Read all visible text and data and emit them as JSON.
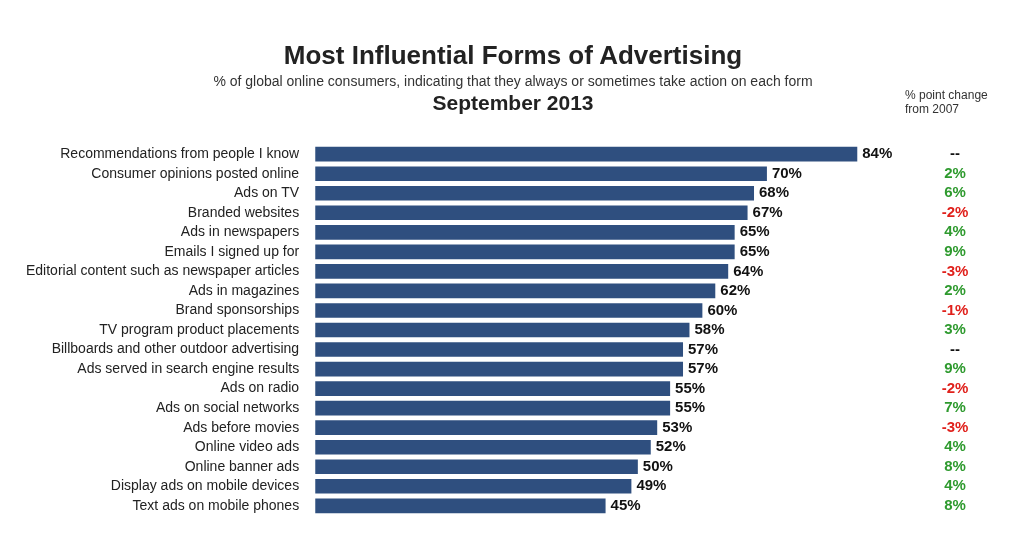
{
  "chart_data": {
    "type": "bar",
    "orientation": "horizontal",
    "title": "Most Influential Forms of Advertising",
    "subtitle": "% of global online consumers, indicating that they always or sometimes take action on each form",
    "categories": [
      "Recommendations from people I know",
      "Consumer opinions posted online",
      "Ads on TV",
      "Branded websites",
      "Ads in newspapers",
      "Emails I signed up for",
      "Editorial content such as newspaper articles",
      "Ads in magazines",
      "Brand sponsorships",
      "TV program product placements",
      "Billboards and other outdoor advertising",
      "Ads served in search engine results",
      "Ads on radio",
      "Ads on social networks",
      "Ads before movies",
      "Online video ads",
      "Online banner ads",
      "Display ads on mobile devices",
      "Text ads on mobile phones"
    ],
    "values": [
      84,
      70,
      68,
      67,
      65,
      65,
      64,
      62,
      60,
      58,
      57,
      57,
      55,
      55,
      53,
      52,
      50,
      49,
      45
    ],
    "value_labels": [
      "84%",
      "70%",
      "68%",
      "67%",
      "65%",
      "65%",
      "64%",
      "62%",
      "60%",
      "58%",
      "57%",
      "57%",
      "55%",
      "55%",
      "53%",
      "52%",
      "50%",
      "49%",
      "45%"
    ],
    "color": "#2f4f7f",
    "grid": false,
    "legend": false,
    "tick_labels": "y",
    "annotations": [
      "September 2013",
      "% point change from 2007",
      "--",
      "2%",
      "6%",
      "-2%",
      "4%",
      "9%",
      "-3%",
      "2%",
      "-1%",
      "3%",
      "--",
      "9%",
      "-2%",
      "7%",
      "-3%",
      "4%",
      "8%",
      "4%",
      "8%"
    ]
  }
}
